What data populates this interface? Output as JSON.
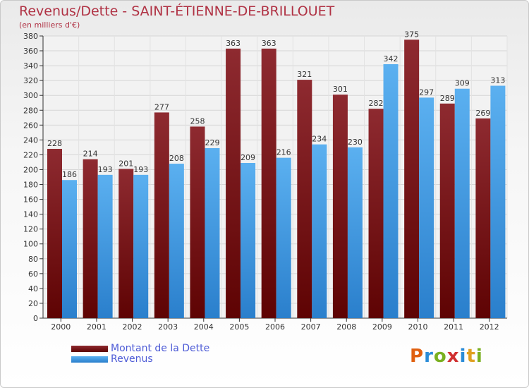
{
  "title": "Revenus/Dette - SAINT-ÉTIENNE-DE-BRILLOUET",
  "subtitle": "(en milliers d'€)",
  "legend": {
    "items": [
      {
        "label": "Montant de la Dette",
        "color": "#7a1010"
      },
      {
        "label": "Revenus",
        "color": "#4aa3e8"
      }
    ]
  },
  "logo": {
    "text": "Proxiti",
    "colors": [
      "#e06010",
      "#2a8cd8",
      "#7ab020",
      "#d03030",
      "#2a8cd8",
      "#e0a020",
      "#7ab020"
    ]
  },
  "chart_data": {
    "type": "bar",
    "categories": [
      "2000",
      "2001",
      "2002",
      "2003",
      "2004",
      "2005",
      "2006",
      "2007",
      "2008",
      "2009",
      "2010",
      "2011",
      "2012"
    ],
    "series": [
      {
        "name": "Montant de la Dette",
        "values": [
          228,
          214,
          201,
          277,
          258,
          363,
          363,
          321,
          301,
          282,
          375,
          289,
          269
        ],
        "color": "#7a1010"
      },
      {
        "name": "Revenus",
        "values": [
          186,
          193,
          193,
          208,
          229,
          209,
          216,
          234,
          230,
          342,
          297,
          309,
          313
        ],
        "color": "#4aa3e8"
      }
    ],
    "ylim": [
      0,
      380
    ],
    "ytick_step": 20,
    "grid": true,
    "legend_position": "bottom-left"
  }
}
